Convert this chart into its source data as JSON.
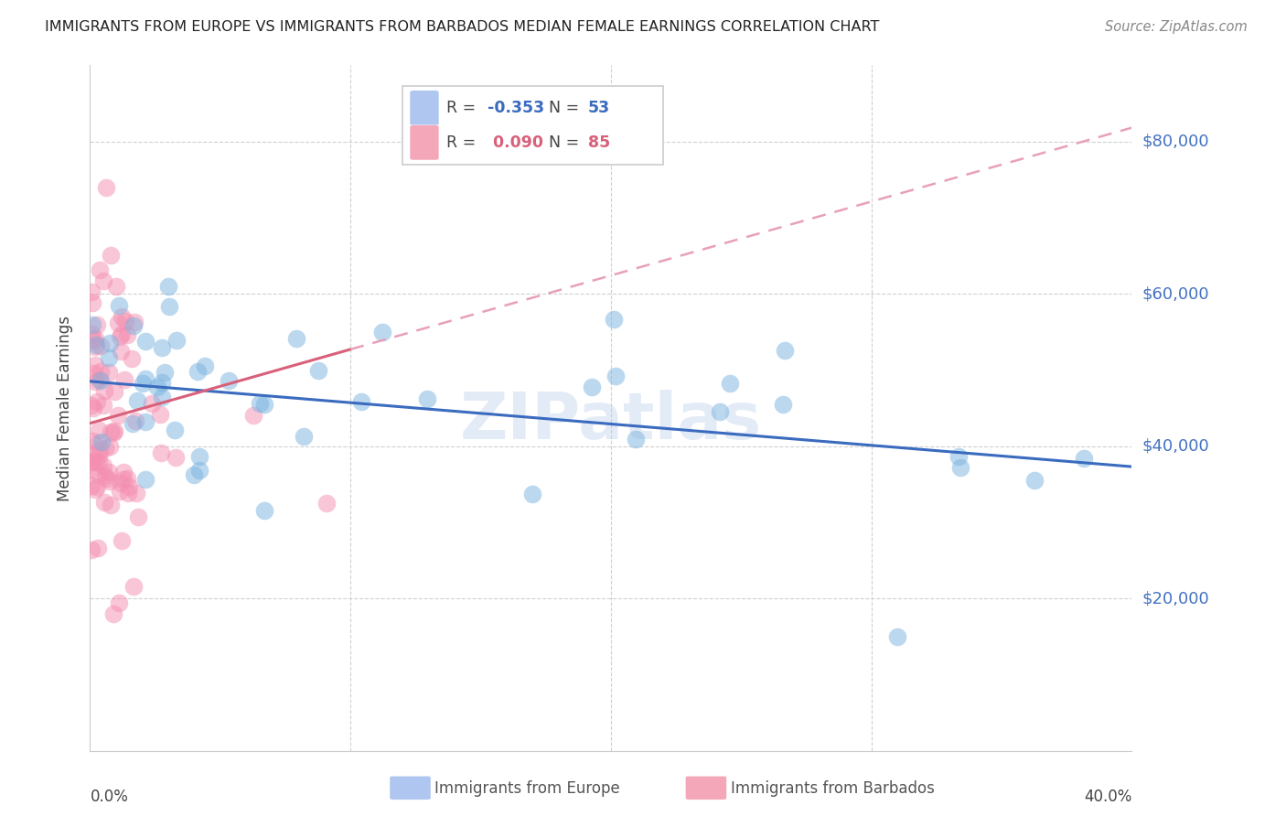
{
  "title": "IMMIGRANTS FROM EUROPE VS IMMIGRANTS FROM BARBADOS MEDIAN FEMALE EARNINGS CORRELATION CHART",
  "source": "Source: ZipAtlas.com",
  "ylabel": "Median Female Earnings",
  "ytick_labels": [
    "$20,000",
    "$40,000",
    "$60,000",
    "$80,000"
  ],
  "ytick_values": [
    20000,
    40000,
    60000,
    80000
  ],
  "ylim": [
    0,
    90000
  ],
  "xlim": [
    0.0,
    0.4
  ],
  "legend_europe_color": "#aec6f0",
  "legend_barbados_color": "#f4a7b9",
  "europe_scatter_color": "#7ab3e0",
  "barbados_scatter_color": "#f48fb1",
  "trendline_europe_color": "#3a6bbf",
  "trendline_barbados_solid_color": "#d9607a",
  "trendline_barbados_dashed_color": "#e8a0b8",
  "ytick_color": "#4472c4",
  "watermark": "ZIPatlas",
  "legend_R_europe": "-0.353",
  "legend_N_europe": "53",
  "legend_R_barbados": "0.090",
  "legend_N_barbados": "85",
  "bottom_legend_europe": "Immigrants from Europe",
  "bottom_legend_barbados": "Immigrants from Barbados"
}
